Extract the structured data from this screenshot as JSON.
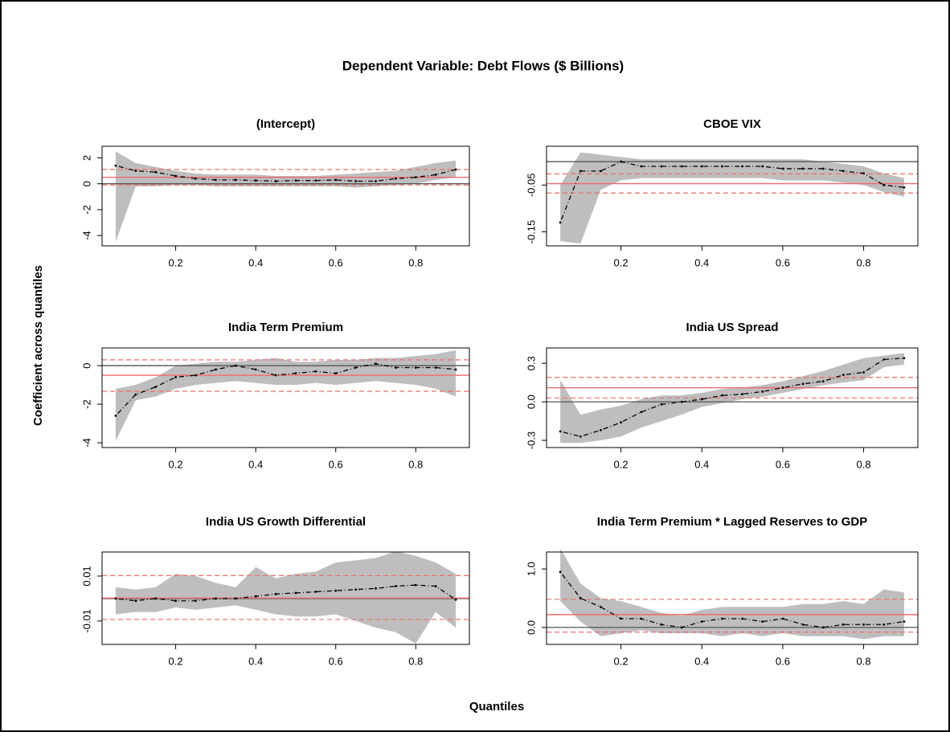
{
  "title": "Dependent Variable: Debt Flows ($ Billions)",
  "xlabel": "Quantiles",
  "ylabel": "Coefficient across quantiles",
  "chart_data": [
    {
      "type": "line",
      "title": "(Intercept)",
      "x": [
        0.05,
        0.1,
        0.15,
        0.2,
        0.25,
        0.3,
        0.35,
        0.4,
        0.45,
        0.5,
        0.55,
        0.6,
        0.65,
        0.7,
        0.75,
        0.8,
        0.85,
        0.9
      ],
      "values": [
        1.4,
        1.0,
        0.9,
        0.6,
        0.4,
        0.3,
        0.3,
        0.25,
        0.2,
        0.25,
        0.25,
        0.3,
        0.2,
        0.2,
        0.4,
        0.5,
        0.7,
        1.1
      ],
      "lower": [
        -4.5,
        -0.2,
        -0.2,
        -0.1,
        -0.1,
        -0.2,
        -0.2,
        -0.2,
        -0.2,
        -0.2,
        -0.2,
        -0.2,
        -0.3,
        -0.2,
        -0.1,
        0.0,
        0.3,
        0.5
      ],
      "upper": [
        2.5,
        1.6,
        1.3,
        1.0,
        0.8,
        0.7,
        0.7,
        0.7,
        0.6,
        0.6,
        0.6,
        0.7,
        0.8,
        0.9,
        1.0,
        1.3,
        1.6,
        1.8
      ],
      "ols": 0.5,
      "ols_ci": [
        -0.1,
        1.1
      ],
      "ref_line": 0,
      "xlim": [
        0.016,
        0.934
      ],
      "xticks": [
        0.2,
        0.4,
        0.6,
        0.8
      ],
      "ylim": [
        -4.8,
        2.9
      ],
      "yticks": [
        -4,
        -2,
        0,
        2
      ],
      "color": "#000000",
      "band_color": "#bebebe",
      "ols_color": "#f06a6a",
      "ref_color": "#555555"
    },
    {
      "type": "line",
      "title": "CBOE VIX",
      "x": [
        0.05,
        0.1,
        0.15,
        0.2,
        0.25,
        0.3,
        0.35,
        0.4,
        0.45,
        0.5,
        0.55,
        0.6,
        0.65,
        0.7,
        0.75,
        0.8,
        0.85,
        0.9
      ],
      "values": [
        -0.13,
        -0.02,
        -0.02,
        0.0,
        -0.01,
        -0.01,
        -0.01,
        -0.01,
        -0.01,
        -0.01,
        -0.01,
        -0.015,
        -0.015,
        -0.015,
        -0.02,
        -0.025,
        -0.05,
        -0.055
      ],
      "lower": [
        -0.17,
        -0.175,
        -0.06,
        -0.04,
        -0.035,
        -0.035,
        -0.035,
        -0.035,
        -0.035,
        -0.035,
        -0.035,
        -0.04,
        -0.04,
        -0.04,
        -0.045,
        -0.05,
        -0.065,
        -0.075
      ],
      "upper": [
        -0.05,
        0.02,
        0.015,
        0.01,
        0.005,
        0.005,
        0.005,
        0.005,
        0.005,
        0.005,
        0.005,
        0.005,
        0.005,
        0.0,
        -0.005,
        -0.01,
        -0.025,
        -0.035
      ],
      "ols": -0.047,
      "ols_ci": [
        -0.067,
        -0.026
      ],
      "ref_line": 0,
      "xlim": [
        0.016,
        0.934
      ],
      "xticks": [
        0.2,
        0.4,
        0.6,
        0.8
      ],
      "ylim": [
        -0.18,
        0.033
      ],
      "yticks": [
        -0.15,
        -0.05
      ],
      "color": "#000000",
      "band_color": "#bebebe",
      "ols_color": "#f06a6a",
      "ref_color": "#555555"
    },
    {
      "type": "line",
      "title": "India Term Premium",
      "x": [
        0.05,
        0.1,
        0.15,
        0.2,
        0.25,
        0.3,
        0.35,
        0.4,
        0.45,
        0.5,
        0.55,
        0.6,
        0.65,
        0.7,
        0.75,
        0.8,
        0.85,
        0.9
      ],
      "values": [
        -2.6,
        -1.5,
        -1.1,
        -0.6,
        -0.5,
        -0.2,
        0.0,
        -0.2,
        -0.5,
        -0.4,
        -0.3,
        -0.4,
        -0.1,
        0.1,
        -0.1,
        -0.1,
        -0.1,
        -0.2
      ],
      "lower": [
        -3.9,
        -1.8,
        -1.6,
        -1.2,
        -1.0,
        -0.9,
        -0.8,
        -0.9,
        -1.0,
        -1.0,
        -0.9,
        -1.0,
        -0.9,
        -0.8,
        -0.9,
        -1.0,
        -1.2,
        -1.6
      ],
      "upper": [
        -1.2,
        -1.0,
        -0.6,
        0.0,
        0.1,
        0.2,
        0.2,
        0.3,
        0.4,
        0.2,
        0.2,
        0.3,
        0.3,
        0.4,
        0.4,
        0.5,
        0.6,
        0.8
      ],
      "ols": -0.5,
      "ols_ci": [
        -1.33,
        0.3
      ],
      "ref_line": 0,
      "xlim": [
        0.016,
        0.934
      ],
      "xticks": [
        0.2,
        0.4,
        0.6,
        0.8
      ],
      "ylim": [
        -4.25,
        0.92
      ],
      "yticks": [
        -4,
        -2,
        0
      ],
      "color": "#000000",
      "band_color": "#bebebe",
      "ols_color": "#f06a6a",
      "ref_color": "#555555"
    },
    {
      "type": "line",
      "title": "India US Spread",
      "x": [
        0.05,
        0.1,
        0.15,
        0.2,
        0.25,
        0.3,
        0.35,
        0.4,
        0.45,
        0.5,
        0.55,
        0.6,
        0.65,
        0.7,
        0.75,
        0.8,
        0.85,
        0.9
      ],
      "values": [
        -0.23,
        -0.27,
        -0.22,
        -0.16,
        -0.08,
        -0.02,
        0.0,
        0.02,
        0.05,
        0.06,
        0.08,
        0.11,
        0.14,
        0.16,
        0.21,
        0.23,
        0.33,
        0.34
      ],
      "lower": [
        -0.32,
        -0.32,
        -0.3,
        -0.27,
        -0.2,
        -0.15,
        -0.1,
        -0.04,
        -0.01,
        0.02,
        0.04,
        0.07,
        0.1,
        0.13,
        0.15,
        0.17,
        0.27,
        0.29
      ],
      "upper": [
        0.17,
        -0.1,
        -0.06,
        -0.03,
        0.02,
        0.05,
        0.05,
        0.07,
        0.1,
        0.11,
        0.13,
        0.16,
        0.2,
        0.24,
        0.29,
        0.34,
        0.36,
        0.38
      ],
      "ols": 0.11,
      "ols_ci": [
        0.03,
        0.19
      ],
      "ref_line": 0,
      "xlim": [
        0.016,
        0.934
      ],
      "xticks": [
        0.2,
        0.4,
        0.6,
        0.8
      ],
      "ylim": [
        -0.356,
        0.42
      ],
      "yticks": [
        -0.3,
        {
          "value": 0,
          "label": "0.0"
        },
        0.3
      ],
      "color": "#000000",
      "band_color": "#bebebe",
      "ols_color": "#f06a6a",
      "ref_color": "#555555"
    },
    {
      "type": "line",
      "title": "India US Growth Differential",
      "x": [
        0.05,
        0.1,
        0.15,
        0.2,
        0.25,
        0.3,
        0.35,
        0.4,
        0.45,
        0.5,
        0.55,
        0.6,
        0.65,
        0.7,
        0.75,
        0.8,
        0.85,
        0.9
      ],
      "values": [
        0,
        -0.001,
        0,
        -0.001,
        -0.001,
        0,
        0,
        0.001,
        0.002,
        0.0025,
        0.003,
        0.0035,
        0.004,
        0.0045,
        0.0055,
        0.006,
        0.0055,
        -0.0005
      ],
      "lower": [
        -0.007,
        -0.006,
        -0.006,
        -0.004,
        -0.005,
        -0.004,
        -0.003,
        -0.005,
        -0.007,
        -0.008,
        -0.008,
        -0.007,
        -0.01,
        -0.013,
        -0.015,
        -0.02,
        -0.006,
        -0.013
      ],
      "upper": [
        0.005,
        0.004,
        0.005,
        0.011,
        0.01,
        0.007,
        0.005,
        0.014,
        0.009,
        0.011,
        0.012,
        0.016,
        0.017,
        0.018,
        0.021,
        0.019,
        0.016,
        0.011
      ],
      "ols": 0.0002,
      "ols_ci": [
        -0.0093,
        0.0102
      ],
      "ref_line": 0,
      "xlim": [
        0.016,
        0.934
      ],
      "xticks": [
        0.2,
        0.4,
        0.6,
        0.8
      ],
      "ylim": [
        -0.0204,
        0.0207
      ],
      "yticks": [
        -0.01,
        0.01
      ],
      "color": "#000000",
      "band_color": "#bebebe",
      "ols_color": "#f06a6a",
      "ref_color": "#555555"
    },
    {
      "type": "line",
      "title": "India Term Premium * Lagged Reserves to GDP",
      "x": [
        0.05,
        0.1,
        0.15,
        0.2,
        0.25,
        0.3,
        0.35,
        0.4,
        0.45,
        0.5,
        0.55,
        0.6,
        0.65,
        0.7,
        0.75,
        0.8,
        0.85,
        0.9
      ],
      "values": [
        0.95,
        0.5,
        0.35,
        0.15,
        0.15,
        0.05,
        0.0,
        0.1,
        0.15,
        0.15,
        0.1,
        0.15,
        0.05,
        0.0,
        0.05,
        0.05,
        0.05,
        0.1
      ],
      "lower": [
        0.45,
        0.1,
        -0.15,
        -0.1,
        -0.05,
        -0.1,
        -0.1,
        -0.1,
        -0.15,
        -0.1,
        -0.15,
        -0.1,
        -0.15,
        -0.15,
        -0.15,
        -0.2,
        -0.15,
        -0.15
      ],
      "upper": [
        1.35,
        0.75,
        0.5,
        0.45,
        0.35,
        0.25,
        0.2,
        0.3,
        0.35,
        0.35,
        0.35,
        0.35,
        0.4,
        0.4,
        0.45,
        0.4,
        0.65,
        0.6
      ],
      "ols": 0.22,
      "ols_ci": [
        -0.08,
        0.48
      ],
      "ref_line": 0,
      "xlim": [
        0.016,
        0.934
      ],
      "xticks": [
        0.2,
        0.4,
        0.6,
        0.8
      ],
      "ylim": [
        -0.29,
        1.29
      ],
      "yticks": [
        {
          "value": 0,
          "label": "0.0"
        },
        {
          "value": 1,
          "label": "1.0"
        }
      ],
      "color": "#000000",
      "band_color": "#bebebe",
      "ols_color": "#f06a6a",
      "ref_color": "#555555"
    }
  ]
}
